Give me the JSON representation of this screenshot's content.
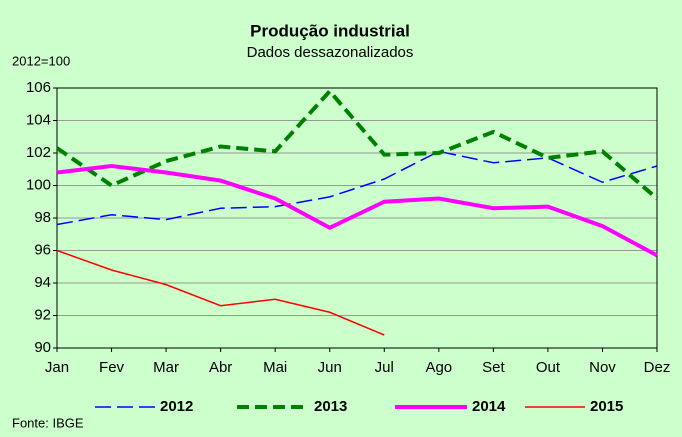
{
  "chart_data": {
    "type": "line",
    "title": "Produção industrial",
    "subtitle": "Dados dessazonalizados",
    "y_label": "2012=100",
    "source": "Fonte: IBGE",
    "categories": [
      "Jan",
      "Fev",
      "Mar",
      "Abr",
      "Mai",
      "Jun",
      "Jul",
      "Ago",
      "Set",
      "Out",
      "Nov",
      "Dez"
    ],
    "series": [
      {
        "name": "2012",
        "color": "#0000ff",
        "dash": "dashed",
        "linewidth": 1.5,
        "values": [
          97.6,
          98.2,
          97.9,
          98.6,
          98.7,
          99.3,
          100.4,
          102.1,
          101.4,
          101.7,
          100.2,
          101.2
        ]
      },
      {
        "name": "2013",
        "color": "#008000",
        "dash": "dashed",
        "linewidth": 4,
        "values": [
          102.3,
          100.0,
          101.5,
          102.4,
          102.1,
          105.8,
          101.9,
          102.0,
          103.3,
          101.7,
          102.1,
          99.2
        ]
      },
      {
        "name": "2014",
        "color": "#ff00ff",
        "dash": "solid",
        "linewidth": 4,
        "values": [
          100.8,
          101.2,
          100.8,
          100.3,
          99.2,
          97.4,
          99.0,
          99.2,
          98.6,
          98.7,
          97.5,
          95.7
        ]
      },
      {
        "name": "2015",
        "color": "#ff0000",
        "dash": "solid",
        "linewidth": 1.5,
        "values": [
          96.0,
          94.8,
          93.9,
          92.6,
          93.0,
          92.2,
          90.8,
          null,
          null,
          null,
          null,
          null
        ]
      }
    ],
    "ylim": [
      90,
      106
    ],
    "yticks": [
      90,
      92,
      94,
      96,
      98,
      100,
      102,
      104,
      106
    ],
    "grid": true,
    "legend": "bottom",
    "background": "#ccffcc"
  }
}
